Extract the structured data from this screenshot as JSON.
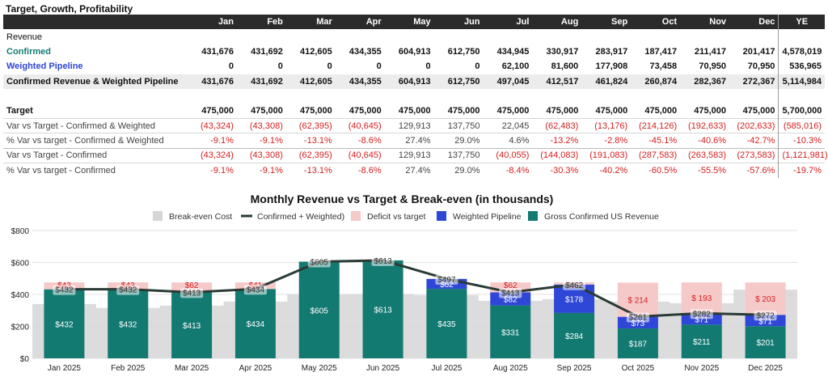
{
  "table": {
    "title": "Target, Growth, Profitability",
    "months": [
      "Jan",
      "Feb",
      "Mar",
      "Apr",
      "May",
      "Jun",
      "Jul",
      "Aug",
      "Sep",
      "Oct",
      "Nov",
      "Dec"
    ],
    "ye_label": "YE",
    "rows": [
      {
        "key": "revenue",
        "label": "Revenue",
        "type": "section",
        "values": []
      },
      {
        "key": "confirmed",
        "label": "Confirmed",
        "type": "confirmed",
        "values": [
          "431,676",
          "431,692",
          "412,605",
          "434,355",
          "604,913",
          "612,750",
          "434,945",
          "330,917",
          "283,917",
          "187,417",
          "211,417",
          "201,417"
        ],
        "ye": "4,578,019"
      },
      {
        "key": "weighted",
        "label": "Weighted Pipeline",
        "type": "weighted",
        "values": [
          "0",
          "0",
          "0",
          "0",
          "0",
          "0",
          "62,100",
          "81,600",
          "177,908",
          "73,458",
          "70,950",
          "70,950"
        ],
        "ye": "536,965"
      },
      {
        "key": "total",
        "label": "Confirmed Revenue & Weighted Pipeline",
        "type": "total",
        "values": [
          "431,676",
          "431,692",
          "412,605",
          "434,355",
          "604,913",
          "612,750",
          "497,045",
          "412,517",
          "461,824",
          "260,874",
          "282,367",
          "272,367"
        ],
        "ye": "5,114,984"
      },
      {
        "key": "blank",
        "label": "",
        "type": "blank",
        "values": []
      },
      {
        "key": "target",
        "label": "Target",
        "type": "target",
        "values": [
          "475,000",
          "475,000",
          "475,000",
          "475,000",
          "475,000",
          "475,000",
          "475,000",
          "475,000",
          "475,000",
          "475,000",
          "475,000",
          "475,000"
        ],
        "ye": "5,700,000"
      },
      {
        "key": "var_cw",
        "label": "Var vs Target - Confirmed & Weighted",
        "type": "var",
        "values": [
          "(43,324)",
          "(43,308)",
          "(62,395)",
          "(40,645)",
          "129,913",
          "137,750",
          "22,045",
          "(62,483)",
          "(13,176)",
          "(214,126)",
          "(192,633)",
          "(202,633)"
        ],
        "ye": "(585,016)"
      },
      {
        "key": "pct_cw",
        "label": "% Var vs target - Confirmed & Weighted",
        "type": "var",
        "values": [
          "-9.1%",
          "-9.1%",
          "-13.1%",
          "-8.6%",
          "27.4%",
          "29.0%",
          "4.6%",
          "-13.2%",
          "-2.8%",
          "-45.1%",
          "-40.6%",
          "-42.7%"
        ],
        "ye": "-10.3%"
      },
      {
        "key": "var_c",
        "label": "Var vs Target - Confirmed",
        "type": "var sep",
        "values": [
          "(43,324)",
          "(43,308)",
          "(62,395)",
          "(40,645)",
          "129,913",
          "137,750",
          "(40,055)",
          "(144,083)",
          "(191,083)",
          "(287,583)",
          "(263,583)",
          "(273,583)"
        ],
        "ye": "(1,121,981)"
      },
      {
        "key": "pct_c",
        "label": "% Var vs target - Confirmed",
        "type": "var",
        "values": [
          "-9.1%",
          "-9.1%",
          "-13.1%",
          "-8.6%",
          "27.4%",
          "29.0%",
          "-8.4%",
          "-30.3%",
          "-40.2%",
          "-60.5%",
          "-55.5%",
          "-57.6%"
        ],
        "ye": "-19.7%"
      }
    ]
  },
  "chart_data": {
    "type": "bar",
    "title": "Monthly Revenue vs Target & Break-even (in thousands)",
    "categories": [
      "Jan 2025",
      "Feb 2025",
      "Mar 2025",
      "Apr 2025",
      "May 2025",
      "Jun 2025",
      "Jul 2025",
      "Aug 2025",
      "Sep 2025",
      "Oct 2025",
      "Nov 2025",
      "Dec 2025"
    ],
    "ylim": [
      0,
      800
    ],
    "yticks": [
      0,
      200,
      400,
      600,
      800
    ],
    "ytick_labels": [
      "$0",
      "$200",
      "$400",
      "$600",
      "$800"
    ],
    "grid": true,
    "legend_position": "top",
    "legend": [
      {
        "key": "breakeven",
        "label": "Break-even Cost",
        "color": "#d6d6d6",
        "shape": "rect"
      },
      {
        "key": "line",
        "label": "Confirmed + Weighted)",
        "color": "#2a3b35",
        "shape": "line"
      },
      {
        "key": "deficit",
        "label": "Deficit vs target",
        "color": "#f6c9c9",
        "shape": "rect"
      },
      {
        "key": "weighted",
        "label": "Weighted Pipeline",
        "color": "#2f47d6",
        "shape": "rect"
      },
      {
        "key": "confirmed",
        "label": "Gross Confirmed US Revenue",
        "color": "#137a72",
        "shape": "rect"
      }
    ],
    "series": [
      {
        "name": "Gross Confirmed US Revenue",
        "key": "confirmed",
        "values": [
          432,
          432,
          413,
          434,
          605,
          613,
          435,
          331,
          284,
          187,
          211,
          201
        ],
        "labels": [
          "$432",
          "$432",
          "$413",
          "$434",
          "$605",
          "$613",
          "$435",
          "$331",
          "$284",
          "$187",
          "$211",
          "$201"
        ]
      },
      {
        "name": "Weighted Pipeline",
        "key": "weighted",
        "values": [
          0,
          0,
          0,
          0,
          0,
          0,
          62,
          82,
          178,
          73,
          71,
          71
        ],
        "labels": [
          "",
          "",
          "",
          "",
          "",
          "",
          "$62",
          "$82",
          "$178",
          "$73",
          "$71",
          "$71"
        ]
      },
      {
        "name": "Deficit vs target",
        "key": "deficit",
        "values": [
          43,
          43,
          62,
          41,
          0,
          0,
          0,
          62,
          13,
          214,
          193,
          203
        ],
        "labels": [
          "$43",
          "$43",
          "$62",
          "$41",
          "",
          "",
          "",
          "$62",
          "$13",
          "$ 214",
          "$ 193",
          "$ 203"
        ]
      },
      {
        "name": "Confirmed + Weighted)",
        "key": "line",
        "values": [
          432,
          432,
          413,
          434,
          605,
          613,
          497,
          413,
          462,
          261,
          282,
          272
        ],
        "labels": [
          "$432",
          "$432",
          "$413",
          "$434",
          "$605",
          "$613",
          "$497",
          "$413",
          "$462",
          "$261",
          "$282",
          "$272"
        ]
      },
      {
        "name": "Break-even Cost",
        "key": "breakeven",
        "values": [
          340,
          315,
          330,
          355,
          400,
          400,
          395,
          360,
          370,
          355,
          345,
          430
        ]
      }
    ]
  }
}
